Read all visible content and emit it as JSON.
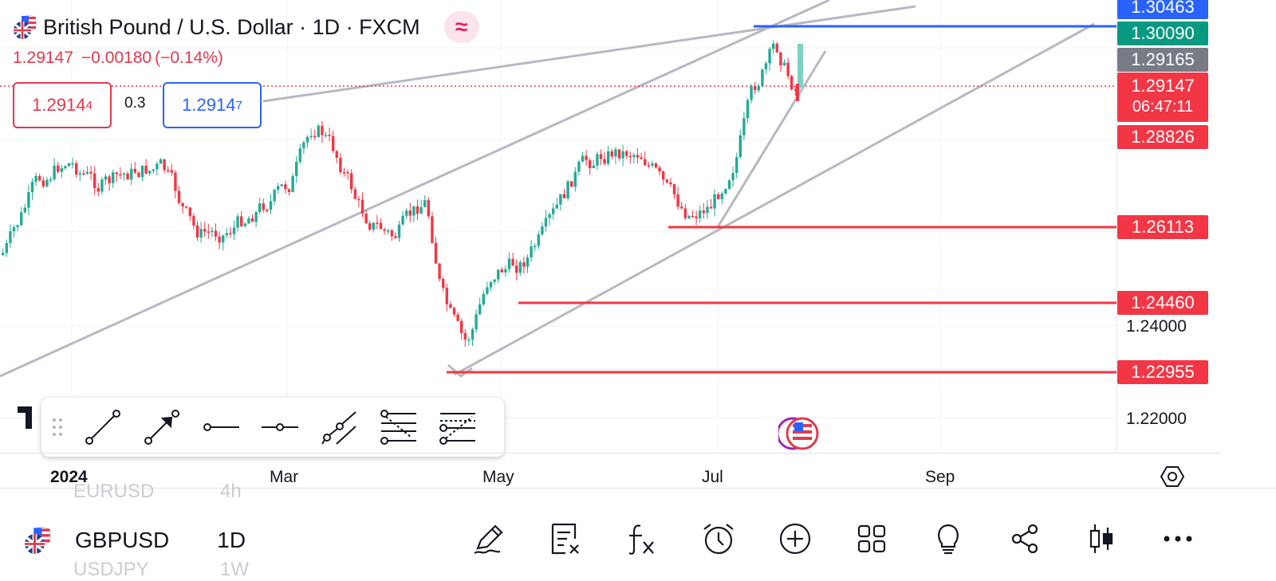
{
  "header": {
    "symbol_title": "British Pound / U.S. Dollar · 1D · FXCM",
    "last_price": "1.29147",
    "change": "−0.00180",
    "change_pct": "(−0.14%)",
    "pattern_badge": "≈"
  },
  "trade": {
    "sell_price": "1.2914",
    "sell_price_small": "4",
    "spread": "0.3",
    "buy_price": "1.2914",
    "buy_price_small": "7"
  },
  "price_axis": {
    "badges": [
      {
        "value": "1.30463",
        "color": "#2962ff"
      },
      {
        "value": "1.30090",
        "color": "#089981"
      },
      {
        "value": "1.29165",
        "color": "#787b86"
      },
      {
        "value": "1.28826",
        "color": "#f23645"
      },
      {
        "value": "1.26113",
        "color": "#f23645"
      },
      {
        "value": "1.24460",
        "color": "#f23645"
      },
      {
        "value": "1.22955",
        "color": "#f23645"
      }
    ],
    "last": {
      "value": "1.29147",
      "countdown": "06:47:11",
      "color": "#f23645"
    },
    "ticks": [
      "1.24000",
      "1.22000"
    ]
  },
  "time_axis": {
    "labels": [
      "2024",
      "Mar",
      "May",
      "Jul",
      "Sep"
    ]
  },
  "bottom": {
    "ghost_prev": "EURUSD",
    "ghost_prev_interval": "4h",
    "symbol": "GBPUSD",
    "interval": "1D",
    "ghost_next": "USDJPY",
    "ghost_next_interval": "1W",
    "icons": [
      "pencil-icon",
      "watchlist-remove-icon",
      "indicators-fx-icon",
      "alert-clock-icon",
      "add-circle-icon",
      "layout-grid-icon",
      "ideas-lightbulb-icon",
      "share-icon",
      "candle-type-icon",
      "more-icon"
    ]
  },
  "drawing_tools": [
    "trend-line",
    "arrow",
    "ray",
    "horizontal-line",
    "parallel-channel",
    "fib-retracement",
    "fib-extension"
  ],
  "colors": {
    "bull": "#22ab94",
    "bear": "#f23645",
    "support": "#f23645",
    "resistance": "#2962ff",
    "trendline": "#b8b8c4"
  }
}
